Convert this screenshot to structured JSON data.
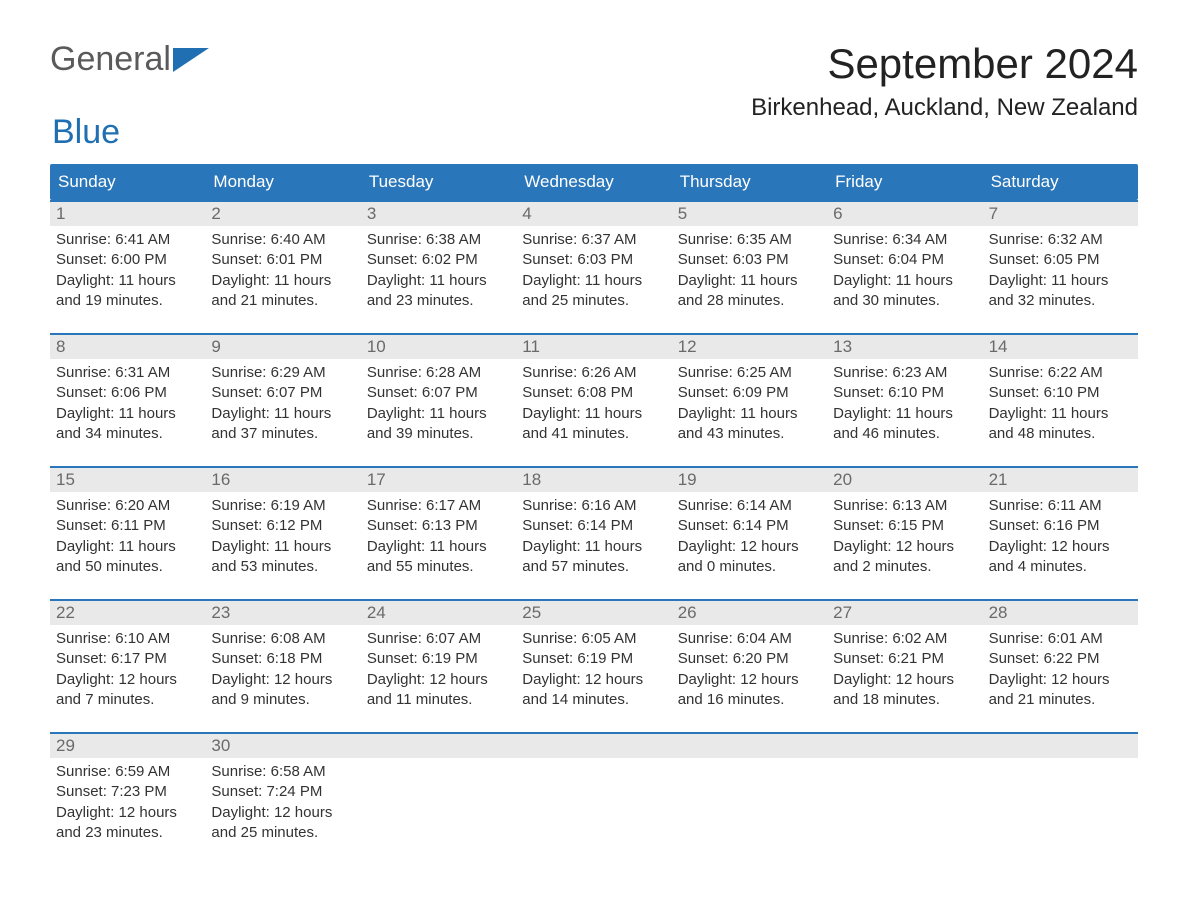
{
  "brand": {
    "part1": "General",
    "part2": "Blue"
  },
  "title": "September 2024",
  "location": "Birkenhead, Auckland, New Zealand",
  "colors": {
    "header_bg": "#2a76ba",
    "header_text": "#ffffff",
    "daynum_bg": "#e9e9e9",
    "daynum_text": "#6a6a6a",
    "body_text": "#333333",
    "row_border": "#2a76ba",
    "brand_gray": "#5a5a5a",
    "brand_blue": "#1f6fb2",
    "page_bg": "#ffffff"
  },
  "weekdays": [
    "Sunday",
    "Monday",
    "Tuesday",
    "Wednesday",
    "Thursday",
    "Friday",
    "Saturday"
  ],
  "weeks": [
    [
      {
        "n": "1",
        "sunrise": "6:41 AM",
        "sunset": "6:00 PM",
        "dayh": "11",
        "daym": "19"
      },
      {
        "n": "2",
        "sunrise": "6:40 AM",
        "sunset": "6:01 PM",
        "dayh": "11",
        "daym": "21"
      },
      {
        "n": "3",
        "sunrise": "6:38 AM",
        "sunset": "6:02 PM",
        "dayh": "11",
        "daym": "23"
      },
      {
        "n": "4",
        "sunrise": "6:37 AM",
        "sunset": "6:03 PM",
        "dayh": "11",
        "daym": "25"
      },
      {
        "n": "5",
        "sunrise": "6:35 AM",
        "sunset": "6:03 PM",
        "dayh": "11",
        "daym": "28"
      },
      {
        "n": "6",
        "sunrise": "6:34 AM",
        "sunset": "6:04 PM",
        "dayh": "11",
        "daym": "30"
      },
      {
        "n": "7",
        "sunrise": "6:32 AM",
        "sunset": "6:05 PM",
        "dayh": "11",
        "daym": "32"
      }
    ],
    [
      {
        "n": "8",
        "sunrise": "6:31 AM",
        "sunset": "6:06 PM",
        "dayh": "11",
        "daym": "34"
      },
      {
        "n": "9",
        "sunrise": "6:29 AM",
        "sunset": "6:07 PM",
        "dayh": "11",
        "daym": "37"
      },
      {
        "n": "10",
        "sunrise": "6:28 AM",
        "sunset": "6:07 PM",
        "dayh": "11",
        "daym": "39"
      },
      {
        "n": "11",
        "sunrise": "6:26 AM",
        "sunset": "6:08 PM",
        "dayh": "11",
        "daym": "41"
      },
      {
        "n": "12",
        "sunrise": "6:25 AM",
        "sunset": "6:09 PM",
        "dayh": "11",
        "daym": "43"
      },
      {
        "n": "13",
        "sunrise": "6:23 AM",
        "sunset": "6:10 PM",
        "dayh": "11",
        "daym": "46"
      },
      {
        "n": "14",
        "sunrise": "6:22 AM",
        "sunset": "6:10 PM",
        "dayh": "11",
        "daym": "48"
      }
    ],
    [
      {
        "n": "15",
        "sunrise": "6:20 AM",
        "sunset": "6:11 PM",
        "dayh": "11",
        "daym": "50"
      },
      {
        "n": "16",
        "sunrise": "6:19 AM",
        "sunset": "6:12 PM",
        "dayh": "11",
        "daym": "53"
      },
      {
        "n": "17",
        "sunrise": "6:17 AM",
        "sunset": "6:13 PM",
        "dayh": "11",
        "daym": "55"
      },
      {
        "n": "18",
        "sunrise": "6:16 AM",
        "sunset": "6:14 PM",
        "dayh": "11",
        "daym": "57"
      },
      {
        "n": "19",
        "sunrise": "6:14 AM",
        "sunset": "6:14 PM",
        "dayh": "12",
        "daym": "0"
      },
      {
        "n": "20",
        "sunrise": "6:13 AM",
        "sunset": "6:15 PM",
        "dayh": "12",
        "daym": "2"
      },
      {
        "n": "21",
        "sunrise": "6:11 AM",
        "sunset": "6:16 PM",
        "dayh": "12",
        "daym": "4"
      }
    ],
    [
      {
        "n": "22",
        "sunrise": "6:10 AM",
        "sunset": "6:17 PM",
        "dayh": "12",
        "daym": "7"
      },
      {
        "n": "23",
        "sunrise": "6:08 AM",
        "sunset": "6:18 PM",
        "dayh": "12",
        "daym": "9"
      },
      {
        "n": "24",
        "sunrise": "6:07 AM",
        "sunset": "6:19 PM",
        "dayh": "12",
        "daym": "11"
      },
      {
        "n": "25",
        "sunrise": "6:05 AM",
        "sunset": "6:19 PM",
        "dayh": "12",
        "daym": "14"
      },
      {
        "n": "26",
        "sunrise": "6:04 AM",
        "sunset": "6:20 PM",
        "dayh": "12",
        "daym": "16"
      },
      {
        "n": "27",
        "sunrise": "6:02 AM",
        "sunset": "6:21 PM",
        "dayh": "12",
        "daym": "18"
      },
      {
        "n": "28",
        "sunrise": "6:01 AM",
        "sunset": "6:22 PM",
        "dayh": "12",
        "daym": "21"
      }
    ],
    [
      {
        "n": "29",
        "sunrise": "6:59 AM",
        "sunset": "7:23 PM",
        "dayh": "12",
        "daym": "23"
      },
      {
        "n": "30",
        "sunrise": "6:58 AM",
        "sunset": "7:24 PM",
        "dayh": "12",
        "daym": "25"
      },
      {
        "n": "",
        "empty": true
      },
      {
        "n": "",
        "empty": true
      },
      {
        "n": "",
        "empty": true
      },
      {
        "n": "",
        "empty": true
      },
      {
        "n": "",
        "empty": true
      }
    ]
  ],
  "labels": {
    "sunrise_prefix": "Sunrise: ",
    "sunset_prefix": "Sunset: ",
    "daylight_prefix": "Daylight: ",
    "hours_word": " hours",
    "and_word": "and ",
    "minutes_word": " minutes."
  }
}
